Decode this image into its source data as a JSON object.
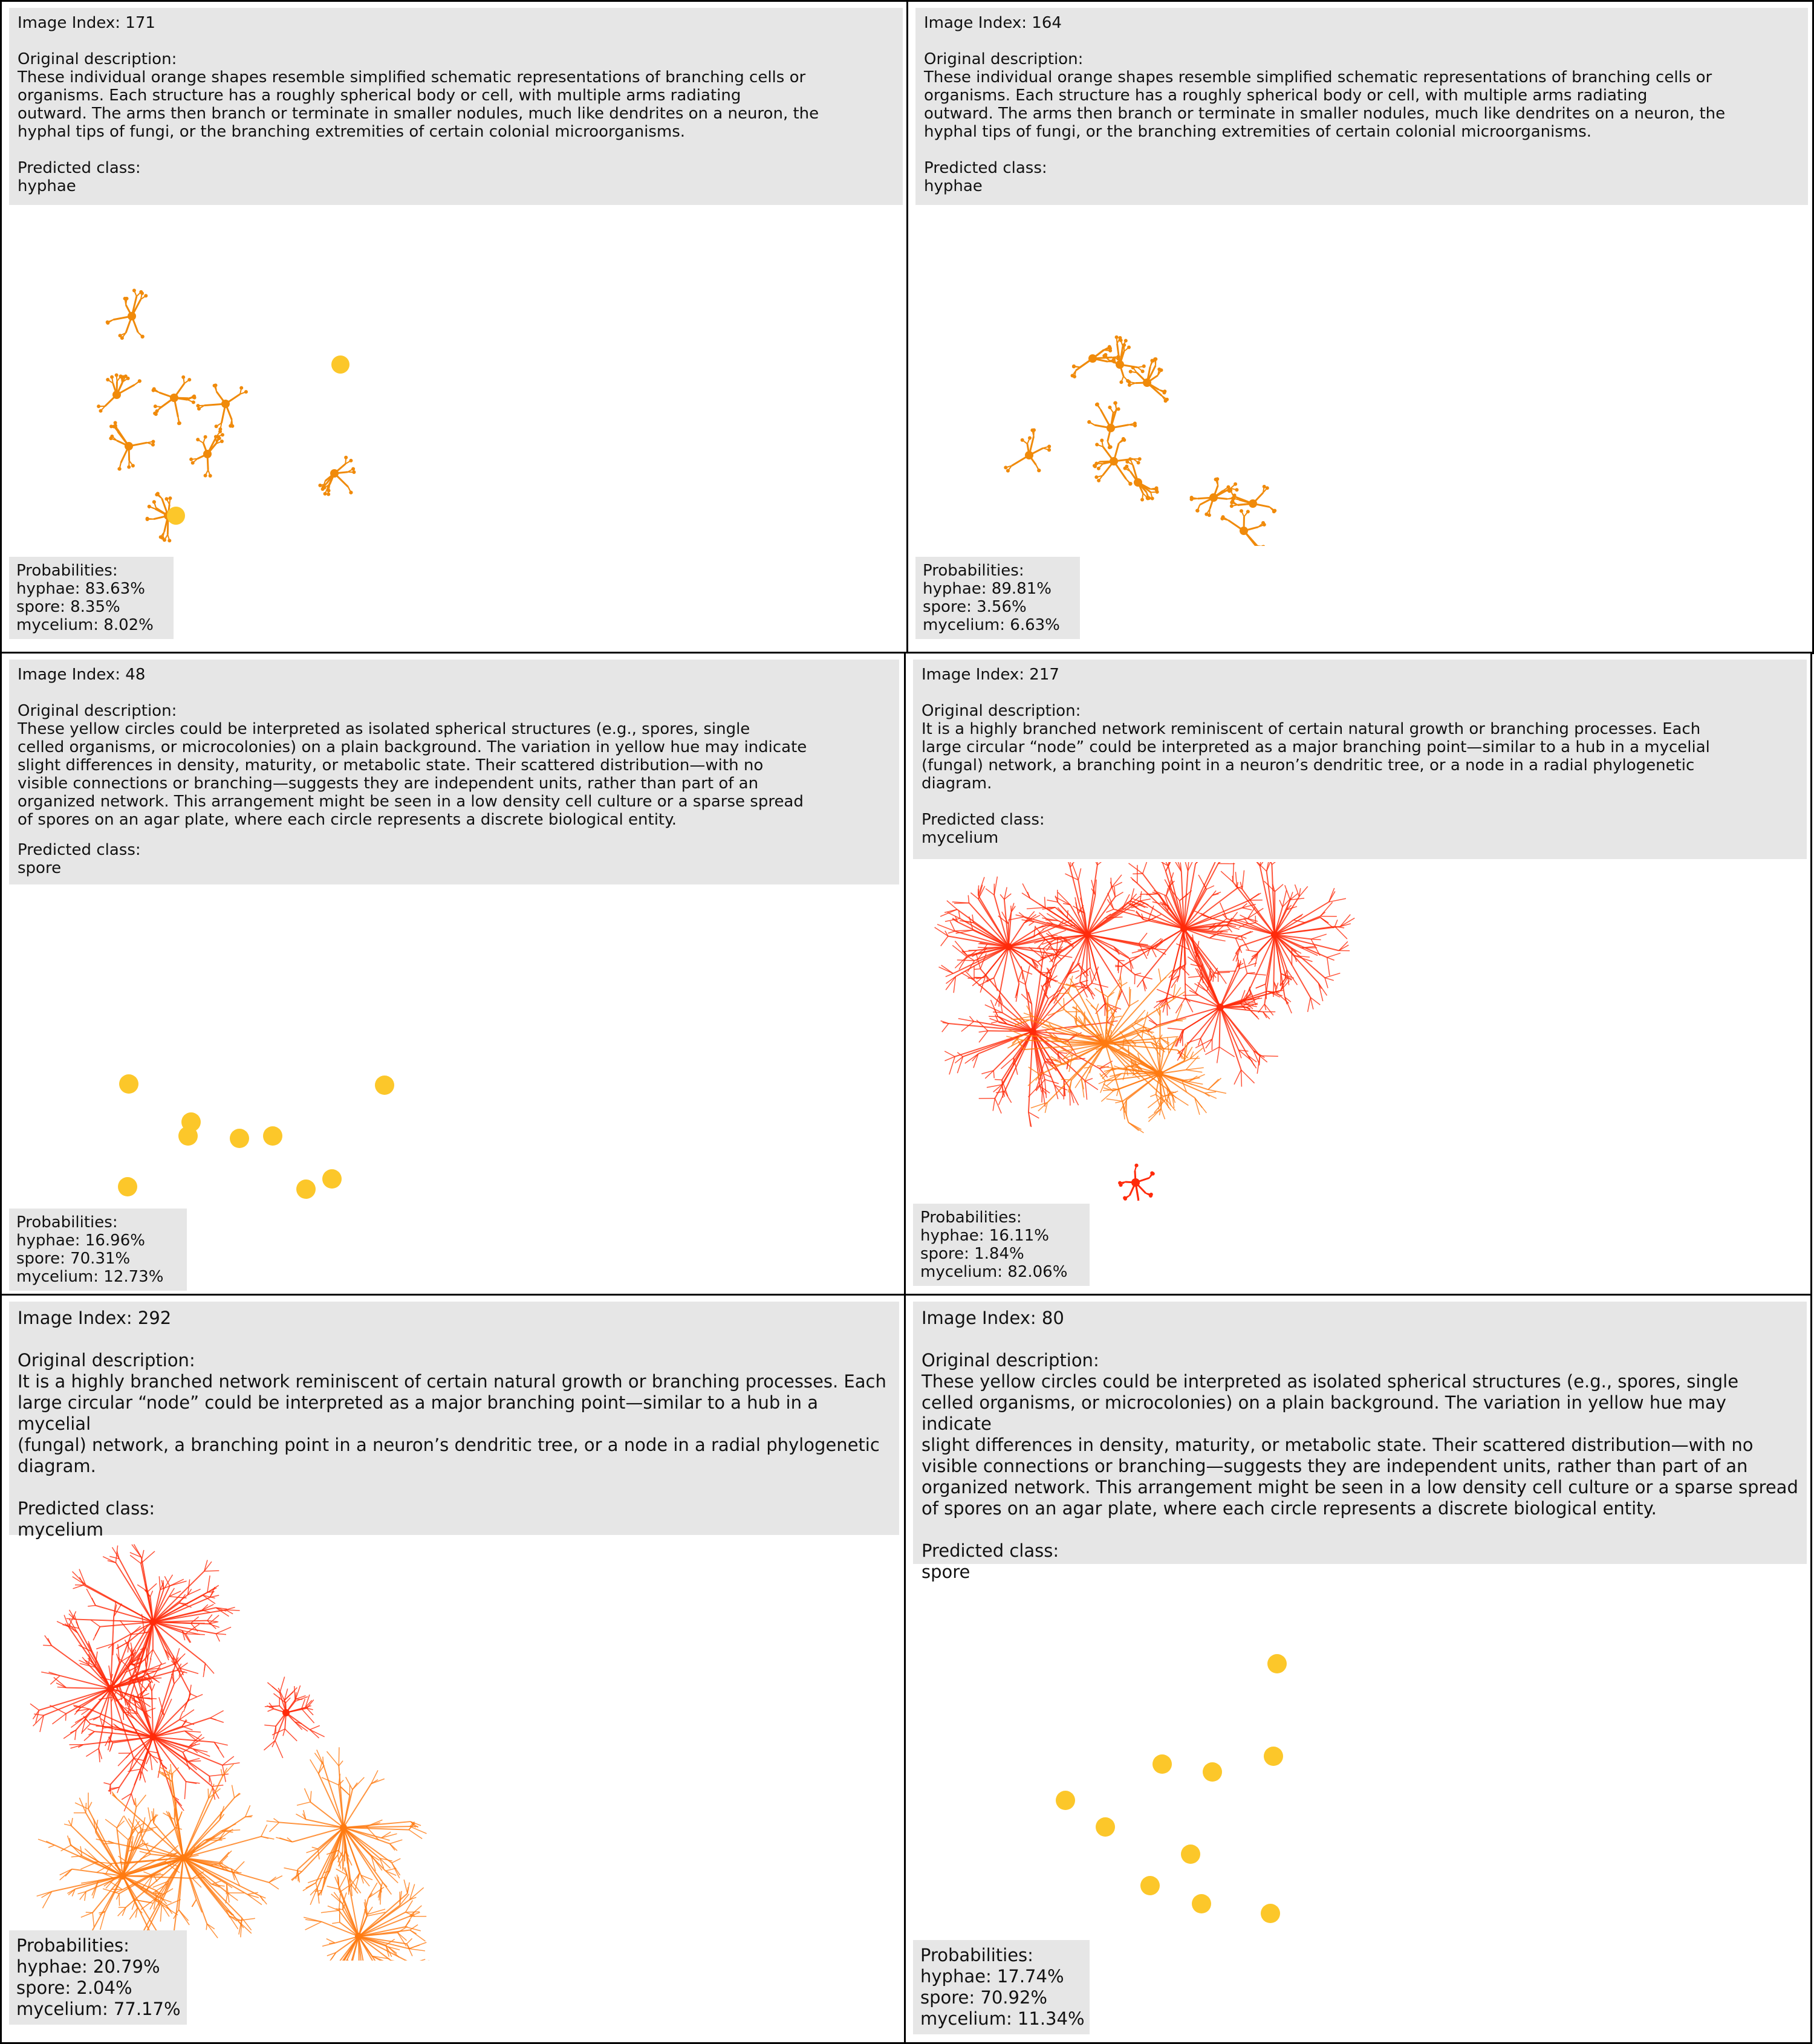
{
  "labels": {
    "index_prefix": "Image Index: ",
    "description_heading": "Original description:",
    "predicted_heading": "Predicted class:",
    "probabilities_heading": "Probabilities:",
    "hyphae_prefix": "hyphae: ",
    "spore_prefix": "spore: ",
    "mycelium_prefix": "mycelium: "
  },
  "colors": {
    "hyphae": "#f08a0a",
    "spore": "#fcc72a",
    "mycelium_red": "#ff2a0a",
    "mycelium_orange": "#ff7a10"
  },
  "panels": [
    {
      "index": "171",
      "description_lines": [
        "These individual orange shapes resemble simplified schematic representations of branching cells or",
        "organisms. Each structure has a roughly spherical body or cell, with multiple arms radiating",
        "outward. The arms then branch or terminate in smaller nodules, much like dendrites on a neuron, the",
        "hyphal tips of fungi, or the branching extremities of certain colonial microorganisms."
      ],
      "predicted": "hyphae",
      "probs": {
        "hyphae": "83.63%",
        "spore": "8.35%",
        "mycelium": "8.02%"
      }
    },
    {
      "index": "164",
      "description_lines": [
        "These individual orange shapes resemble simplified schematic representations of branching cells or",
        "organisms. Each structure has a roughly spherical body or cell, with multiple arms radiating",
        "outward. The arms then branch or terminate in smaller nodules, much like dendrites on a neuron, the",
        "hyphal tips of fungi, or the branching extremities of certain colonial microorganisms."
      ],
      "predicted": "hyphae",
      "probs": {
        "hyphae": "89.81%",
        "spore": "3.56%",
        "mycelium": "6.63%"
      }
    },
    {
      "index": "48",
      "description_lines": [
        "These yellow circles could be interpreted as isolated spherical structures (e.g., spores, single",
        "celled organisms, or microcolonies) on a plain background. The variation in yellow hue may indicate",
        "slight differences in density, maturity, or metabolic state. Their scattered distribution—with no",
        "visible connections or branching—suggests they are independent units, rather than part of an",
        "organized network. This arrangement might be seen in a low density cell culture or a sparse spread",
        "of spores on an agar plate, where each circle represents a discrete biological entity."
      ],
      "predicted": "spore",
      "probs": {
        "hyphae": "16.96%",
        "spore": "70.31%",
        "mycelium": "12.73%"
      }
    },
    {
      "index": "217",
      "description_lines": [
        "It is a highly branched network reminiscent of certain natural growth or branching processes. Each",
        "large circular “node” could be interpreted as a major branching point—similar to a hub in a mycelial",
        "(fungal) network, a branching point in a neuron’s dendritic tree, or a node in a radial phylogenetic",
        "diagram."
      ],
      "predicted": "mycelium",
      "probs": {
        "hyphae": "16.11%",
        "spore": "1.84%",
        "mycelium": "82.06%"
      }
    },
    {
      "index": "292",
      "description_lines": [
        "It is a highly branched network reminiscent of certain natural growth or branching processes. Each",
        "large circular “node” could be interpreted as a major branching point—similar to a hub in a mycelial",
        "(fungal) network, a branching point in a neuron’s dendritic tree, or a node in a radial phylogenetic",
        "diagram."
      ],
      "predicted": "mycelium",
      "probs": {
        "hyphae": "20.79%",
        "spore": "2.04%",
        "mycelium": "77.17%"
      }
    },
    {
      "index": "80",
      "description_lines": [
        "These yellow circles could be interpreted as isolated spherical structures (e.g., spores, single",
        "celled organisms, or microcolonies) on a plain background. The variation in yellow hue may indicate",
        "slight differences in density, maturity, or metabolic state. Their scattered distribution—with no",
        "visible connections or branching—suggests they are independent units, rather than part of an",
        "organized network. This arrangement might be seen in a low density cell culture or a sparse spread",
        "of spores on an agar plate, where each circle represents a discrete biological entity."
      ],
      "predicted": "spore",
      "probs": {
        "hyphae": "17.74%",
        "spore": "70.92%",
        "mycelium": "11.34%"
      }
    }
  ]
}
